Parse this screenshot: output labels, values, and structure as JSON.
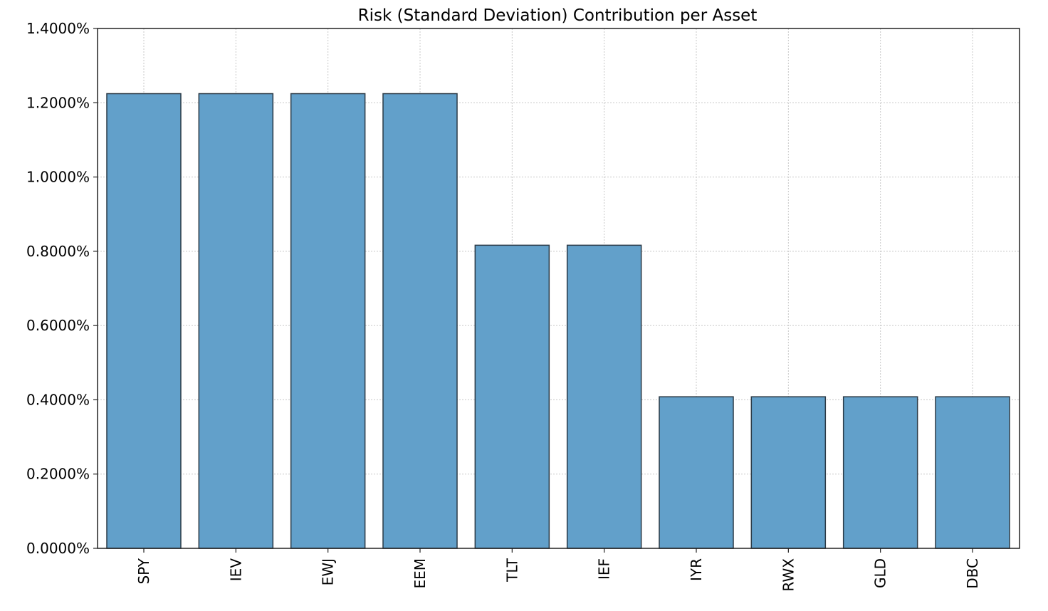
{
  "chart_data": {
    "type": "bar",
    "title": "Risk (Standard Deviation) Contribution per Asset",
    "xlabel": "",
    "ylabel": "",
    "categories": [
      "SPY",
      "IEV",
      "EWJ",
      "EEM",
      "TLT",
      "IEF",
      "IYR",
      "RWX",
      "GLD",
      "DBC"
    ],
    "values": [
      1.2245,
      1.2245,
      1.2245,
      1.2245,
      0.8163,
      0.8163,
      0.4082,
      0.4082,
      0.4082,
      0.4082
    ],
    "value_unit": "%",
    "ylim": [
      0,
      1.4
    ],
    "y_ticks": [
      0,
      0.2,
      0.4,
      0.6,
      0.8,
      1.0,
      1.2,
      1.4
    ],
    "y_tick_labels": [
      "0.0000%",
      "0.2000%",
      "0.4000%",
      "0.6000%",
      "0.8000%",
      "1.0000%",
      "1.2000%",
      "1.4000%"
    ],
    "grid": true,
    "legend": "none",
    "colors": {
      "bar_fill": "#62a0ca",
      "bar_edge": "#2b3a46",
      "grid": "#c8c8c8",
      "axes": "#222222"
    }
  }
}
